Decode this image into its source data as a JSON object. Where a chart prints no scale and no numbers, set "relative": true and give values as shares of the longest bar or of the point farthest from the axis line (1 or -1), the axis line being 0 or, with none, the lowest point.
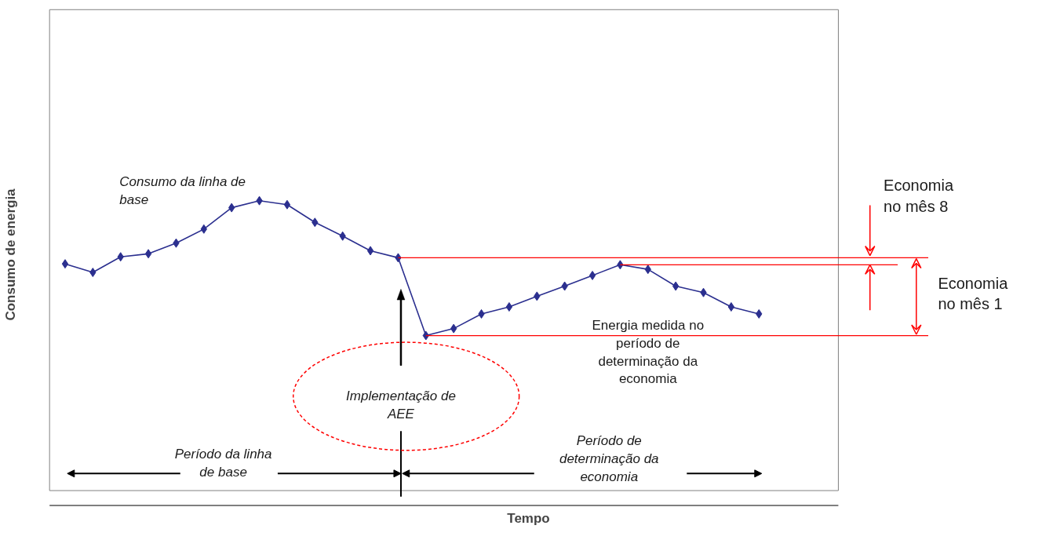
{
  "chart_data": {
    "type": "line",
    "relative": true,
    "xlabel": "Tempo",
    "ylabel": "Consumo de energia",
    "tick_labels": false,
    "marker": "diamond",
    "line_style": "solid",
    "categories": [
      null,
      null,
      null,
      null,
      null,
      null,
      null,
      null,
      null,
      null,
      null,
      null,
      null,
      null,
      null,
      null,
      null,
      null,
      null,
      null,
      null,
      null,
      null,
      null,
      null,
      null
    ],
    "series": [
      {
        "color": "#2b2f8f",
        "values": [
          0.793,
          0.765,
          0.816,
          0.826,
          0.861,
          0.907,
          0.977,
          1,
          0.987,
          0.929,
          0.884,
          0.836,
          0.813,
          0.558,
          0.581,
          0.629,
          0.652,
          0.687,
          0.72,
          0.755,
          0.79,
          0.775,
          0.72,
          0.699,
          0.652,
          0.629
        ]
      }
    ],
    "ref_lines": [
      {
        "axis": "y",
        "value": 0.813,
        "color": "#ff0000"
      },
      {
        "axis": "y",
        "value": 0.79,
        "color": "#ff0000"
      },
      {
        "axis": "y",
        "value": 0.558,
        "color": "#ff0000"
      }
    ],
    "annotations": [
      "Consumo da linha de base",
      "Energia medida no período de determinação da economia",
      "Implementação de AEE",
      "Período da linha de base",
      "Período de determinação da economia",
      "Economia no mês 8",
      "Economia no mês 1"
    ]
  }
}
